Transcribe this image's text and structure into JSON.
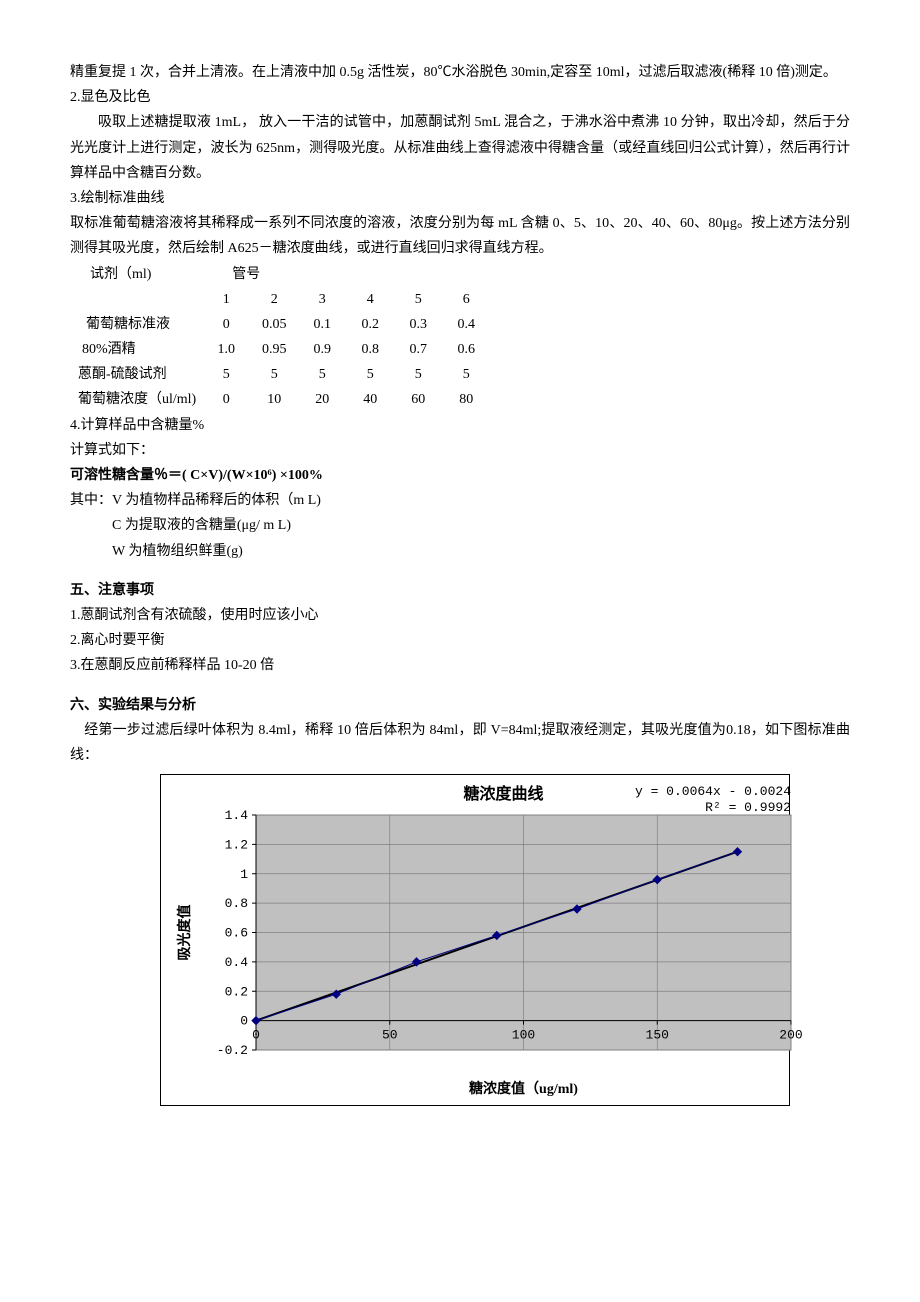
{
  "intro": {
    "p1": "精重复提 1 次，合并上清液。在上清液中加 0.5g 活性炭，80℃水浴脱色 30min,定容至 10ml，过滤后取滤液(稀释 10 倍)测定。",
    "step2_title": "2.显色及比色",
    "p2": "吸取上述糖提取液 1mL，  放入一干洁的试管中，加蒽酮试剂 5mL 混合之，于沸水浴中煮沸 10 分钟，取出冷却，然后于分光光度计上进行测定，波长为 625nm，测得吸光度。从标准曲线上查得滤液中得糖含量（或经直线回归公式计算），然后再行计算样品中含糖百分数。",
    "step3_title": "3.绘制标准曲线",
    "p3": "取标准葡萄糖溶液将其稀释成一系列不同浓度的溶液，浓度分别为每 mL 含糖 0、5、10、20、40、60、80μg。按上述方法分别测得其吸光度，然后绘制 A625－糖浓度曲线，或进行直线回归求得直线方程。"
  },
  "table": {
    "header_reagent": "试剂（ml)",
    "header_tube": "管号",
    "cols": [
      "1",
      "2",
      "3",
      "4",
      "5",
      "6"
    ],
    "rows": [
      {
        "label": "葡萄糖标准液",
        "vals": [
          "0",
          "0.05",
          "0.1",
          "0.2",
          "0.3",
          "0.4"
        ]
      },
      {
        "label": "80%酒精",
        "vals": [
          "1.0",
          "0.95",
          "0.9",
          "0.8",
          "0.7",
          "0.6"
        ]
      },
      {
        "label": "蒽酮-硫酸试剂",
        "vals": [
          "5",
          "5",
          "5",
          "5",
          "5",
          "5"
        ]
      },
      {
        "label": "葡萄糖浓度（ul/ml)",
        "vals": [
          "0",
          "10",
          "20",
          "40",
          "60",
          "80"
        ]
      }
    ]
  },
  "calc": {
    "title": "4.计算样品中含糖量%",
    "lead": "计算式如下：",
    "formula": "可溶性糖含量％＝( C×V)/(W×10⁶) ×100%",
    "where_lead": "其中：V 为植物样品稀释后的体积（m L)",
    "where_c": "C 为提取液的含糖量(μg/ m L)",
    "where_w": "W 为植物组织鲜重(g)"
  },
  "sec5": {
    "title": "五、注意事项",
    "items": [
      "1.蒽酮试剂含有浓硫酸，使用时应该小心",
      "2.离心时要平衡",
      "3.在蒽酮反应前稀释样品 10-20 倍"
    ]
  },
  "sec6": {
    "title": "六、实验结果与分析",
    "p": "经第一步过滤后绿叶体积为 8.4ml，稀释 10 倍后体积为 84ml，即 V=84ml;提取液经测定，其吸光度值为0.18，如下图标准曲线："
  },
  "chart": {
    "type": "scatter-line",
    "title": "糖浓度曲线",
    "equation": "y = 0.0064x - 0.0024",
    "r2": "R² = 0.9992",
    "xlabel": "糖浓度值（ug/ml)",
    "ylabel": "吸光度值",
    "xlim": [
      0,
      200
    ],
    "ylim": [
      -0.2,
      1.4
    ],
    "xticks": [
      0,
      50,
      100,
      150,
      200
    ],
    "yticks": [
      -0.2,
      0,
      0.2,
      0.4,
      0.6,
      0.8,
      1,
      1.2,
      1.4
    ],
    "points_x": [
      0,
      30,
      60,
      90,
      120,
      150,
      180
    ],
    "points_y": [
      0,
      0.18,
      0.4,
      0.58,
      0.76,
      0.96,
      1.15
    ],
    "background_color": "#ffffff",
    "plot_bg": "#c0c0c0",
    "grid_color": "#808080",
    "line_color": "#000000",
    "marker_color": "#000080",
    "marker_size": 4,
    "line_width": 2,
    "title_fontsize": 16,
    "label_fontsize": 14,
    "tick_fontsize": 13,
    "formula_fontsize": 13
  }
}
